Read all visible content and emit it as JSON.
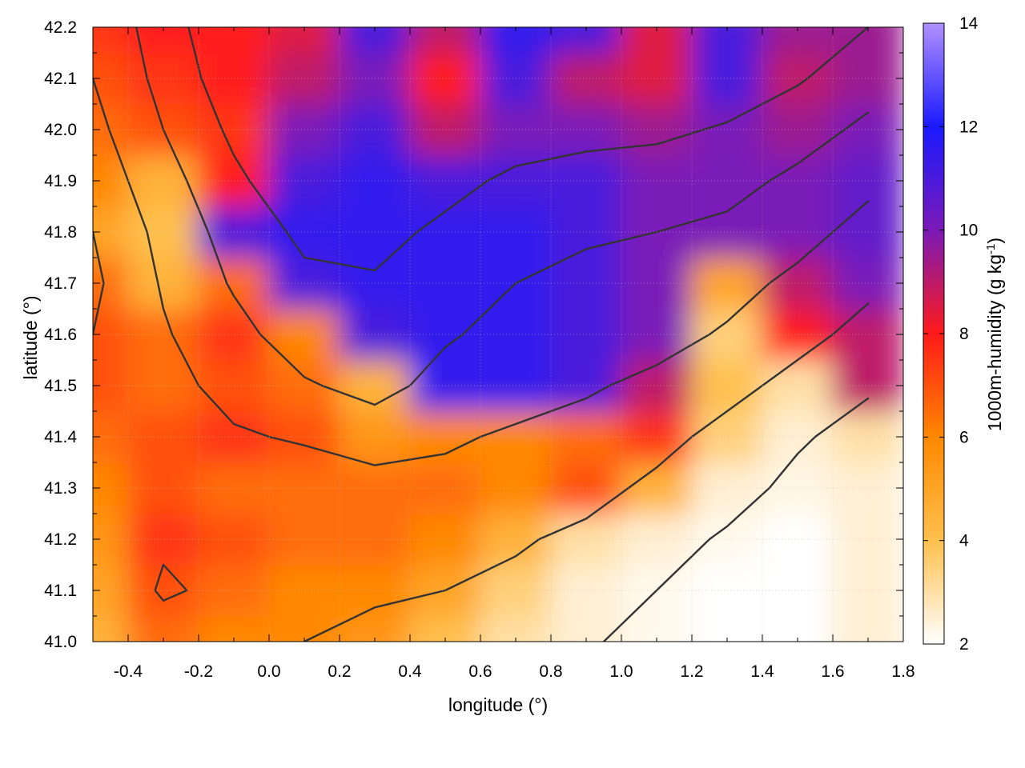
{
  "chart_data": {
    "type": "heatmap",
    "title": "",
    "xlabel": "longitude (°)",
    "ylabel": "latitude (°)",
    "colorbar_label": "1000m-humidity (g kg",
    "colorbar_label_sup": "-1",
    "colorbar_label_end": ")",
    "xlim": [
      -0.5,
      1.8
    ],
    "ylim": [
      41.0,
      42.2
    ],
    "x_ticks": [
      -0.4,
      -0.2,
      0.0,
      0.2,
      0.4,
      0.6,
      0.8,
      1.0,
      1.2,
      1.4,
      1.6,
      1.8
    ],
    "x_tick_labels": [
      "-0.4",
      "-0.2",
      "0.0",
      "0.2",
      "0.4",
      "0.6",
      "0.8",
      "1.0",
      "1.2",
      "1.4",
      "1.6",
      "1.8"
    ],
    "y_ticks": [
      41.0,
      41.1,
      41.2,
      41.3,
      41.4,
      41.5,
      41.6,
      41.7,
      41.8,
      41.9,
      42.0,
      42.1,
      42.2
    ],
    "y_tick_labels": [
      "41.0",
      "41.1",
      "41.2",
      "41.3",
      "41.4",
      "41.5",
      "41.6",
      "41.7",
      "41.8",
      "41.9",
      "42.0",
      "42.1",
      "42.2"
    ],
    "clim": [
      2,
      14
    ],
    "colorbar_ticks": [
      2,
      4,
      6,
      8,
      10,
      12,
      14
    ],
    "colorbar_tick_labels": [
      "2",
      "4",
      "6",
      "8",
      "10",
      "12",
      "14"
    ],
    "colormap": [
      {
        "value": 2,
        "color": "#ffffff"
      },
      {
        "value": 4,
        "color": "#ffc04d"
      },
      {
        "value": 6,
        "color": "#ff8800"
      },
      {
        "value": 8,
        "color": "#ff1a1a"
      },
      {
        "value": 10,
        "color": "#7a1ab8"
      },
      {
        "value": 12,
        "color": "#1a1aff"
      },
      {
        "value": 14,
        "color": "#b090ff"
      }
    ],
    "grid": true,
    "contour_color": "#333333",
    "humidity_grid": {
      "x": [
        -0.5,
        -0.3,
        -0.1,
        0.1,
        0.3,
        0.5,
        0.7,
        0.9,
        1.1,
        1.3,
        1.5,
        1.7
      ],
      "y": [
        41.0,
        41.1,
        41.2,
        41.3,
        41.4,
        41.5,
        41.6,
        41.7,
        41.8,
        41.9,
        42.0,
        42.1,
        42.2
      ],
      "z": [
        [
          4.5,
          6.5,
          6.0,
          6.0,
          5.5,
          4.0,
          3.0,
          2.5,
          2.2,
          2.0,
          2.0,
          2.5
        ],
        [
          5.0,
          7.0,
          6.5,
          6.0,
          6.0,
          5.0,
          3.5,
          2.5,
          2.2,
          2.0,
          2.0,
          2.5
        ],
        [
          5.5,
          7.5,
          7.0,
          6.5,
          6.5,
          6.0,
          4.5,
          3.0,
          2.5,
          2.2,
          2.0,
          2.5
        ],
        [
          6.0,
          7.0,
          6.5,
          6.5,
          6.5,
          6.5,
          6.0,
          7.0,
          4.5,
          2.5,
          2.3,
          2.5
        ],
        [
          6.5,
          7.0,
          7.5,
          7.0,
          5.5,
          6.0,
          6.0,
          6.5,
          7.5,
          3.5,
          2.5,
          3.0
        ],
        [
          7.0,
          6.5,
          7.0,
          6.5,
          4.5,
          11.5,
          11.5,
          11.0,
          9.0,
          4.0,
          3.0,
          9.0
        ],
        [
          7.0,
          6.5,
          7.5,
          6.0,
          11.0,
          11.5,
          11.5,
          11.0,
          10.0,
          3.5,
          8.0,
          9.0
        ],
        [
          6.5,
          4.5,
          6.5,
          11.0,
          11.5,
          11.5,
          11.5,
          11.0,
          10.0,
          5.0,
          9.0,
          10.0
        ],
        [
          5.0,
          4.0,
          11.0,
          11.5,
          11.5,
          11.5,
          11.5,
          11.0,
          10.0,
          10.0,
          10.0,
          10.5
        ],
        [
          6.0,
          4.5,
          8.0,
          11.0,
          11.5,
          11.0,
          11.0,
          11.0,
          10.0,
          10.0,
          10.0,
          10.5
        ],
        [
          6.5,
          7.0,
          7.5,
          10.0,
          11.0,
          9.0,
          10.0,
          10.0,
          9.5,
          10.0,
          9.5,
          10.0
        ],
        [
          7.0,
          7.5,
          8.0,
          9.0,
          10.0,
          8.0,
          11.0,
          9.0,
          8.5,
          11.0,
          9.0,
          9.5
        ],
        [
          7.5,
          8.0,
          8.0,
          8.5,
          11.0,
          9.0,
          11.5,
          11.0,
          8.5,
          11.0,
          9.5,
          9.5
        ]
      ]
    },
    "contour_levels": [
      100,
      300,
      500,
      700,
      900
    ],
    "terrain_grid": {
      "x": [
        -0.5,
        -0.3,
        -0.1,
        0.1,
        0.3,
        0.5,
        0.7,
        0.9,
        1.1,
        1.3,
        1.5,
        1.7
      ],
      "y": [
        41.0,
        41.1,
        41.2,
        41.3,
        41.4,
        41.5,
        41.6,
        41.7,
        41.8,
        41.9,
        42.0,
        42.1,
        42.2
      ],
      "z": [
        [
          300,
          420,
          380,
          300,
          260,
          220,
          180,
          120,
          40,
          0,
          0,
          0
        ],
        [
          350,
          520,
          460,
          360,
          320,
          300,
          260,
          180,
          100,
          20,
          0,
          0
        ],
        [
          400,
          480,
          420,
          380,
          360,
          380,
          320,
          260,
          160,
          80,
          20,
          0
        ],
        [
          380,
          420,
          440,
          400,
          420,
          460,
          420,
          360,
          260,
          160,
          60,
          20
        ],
        [
          360,
          400,
          480,
          520,
          600,
          520,
          480,
          440,
          360,
          240,
          120,
          40
        ],
        [
          340,
          440,
          560,
          680,
          760,
          640,
          560,
          520,
          460,
          360,
          240,
          120
        ],
        [
          300,
          480,
          640,
          800,
          820,
          720,
          640,
          600,
          560,
          480,
          360,
          240
        ],
        [
          260,
          520,
          720,
          860,
          880,
          780,
          700,
          660,
          620,
          560,
          460,
          340
        ],
        [
          300,
          560,
          780,
          940,
          960,
          860,
          760,
          720,
          700,
          660,
          560,
          440
        ],
        [
          380,
          620,
          860,
          1040,
          1080,
          960,
          860,
          820,
          800,
          760,
          660,
          540
        ],
        [
          440,
          700,
          940,
          1140,
          1220,
          1100,
          1000,
          960,
          940,
          880,
          780,
          660
        ],
        [
          500,
          760,
          1020,
          1240,
          1360,
          1260,
          1160,
          1120,
          1080,
          1020,
          920,
          780
        ],
        [
          540,
          800,
          1080,
          1320,
          1460,
          1400,
          1300,
          1260,
          1220,
          1160,
          1060,
          900
        ]
      ]
    }
  }
}
